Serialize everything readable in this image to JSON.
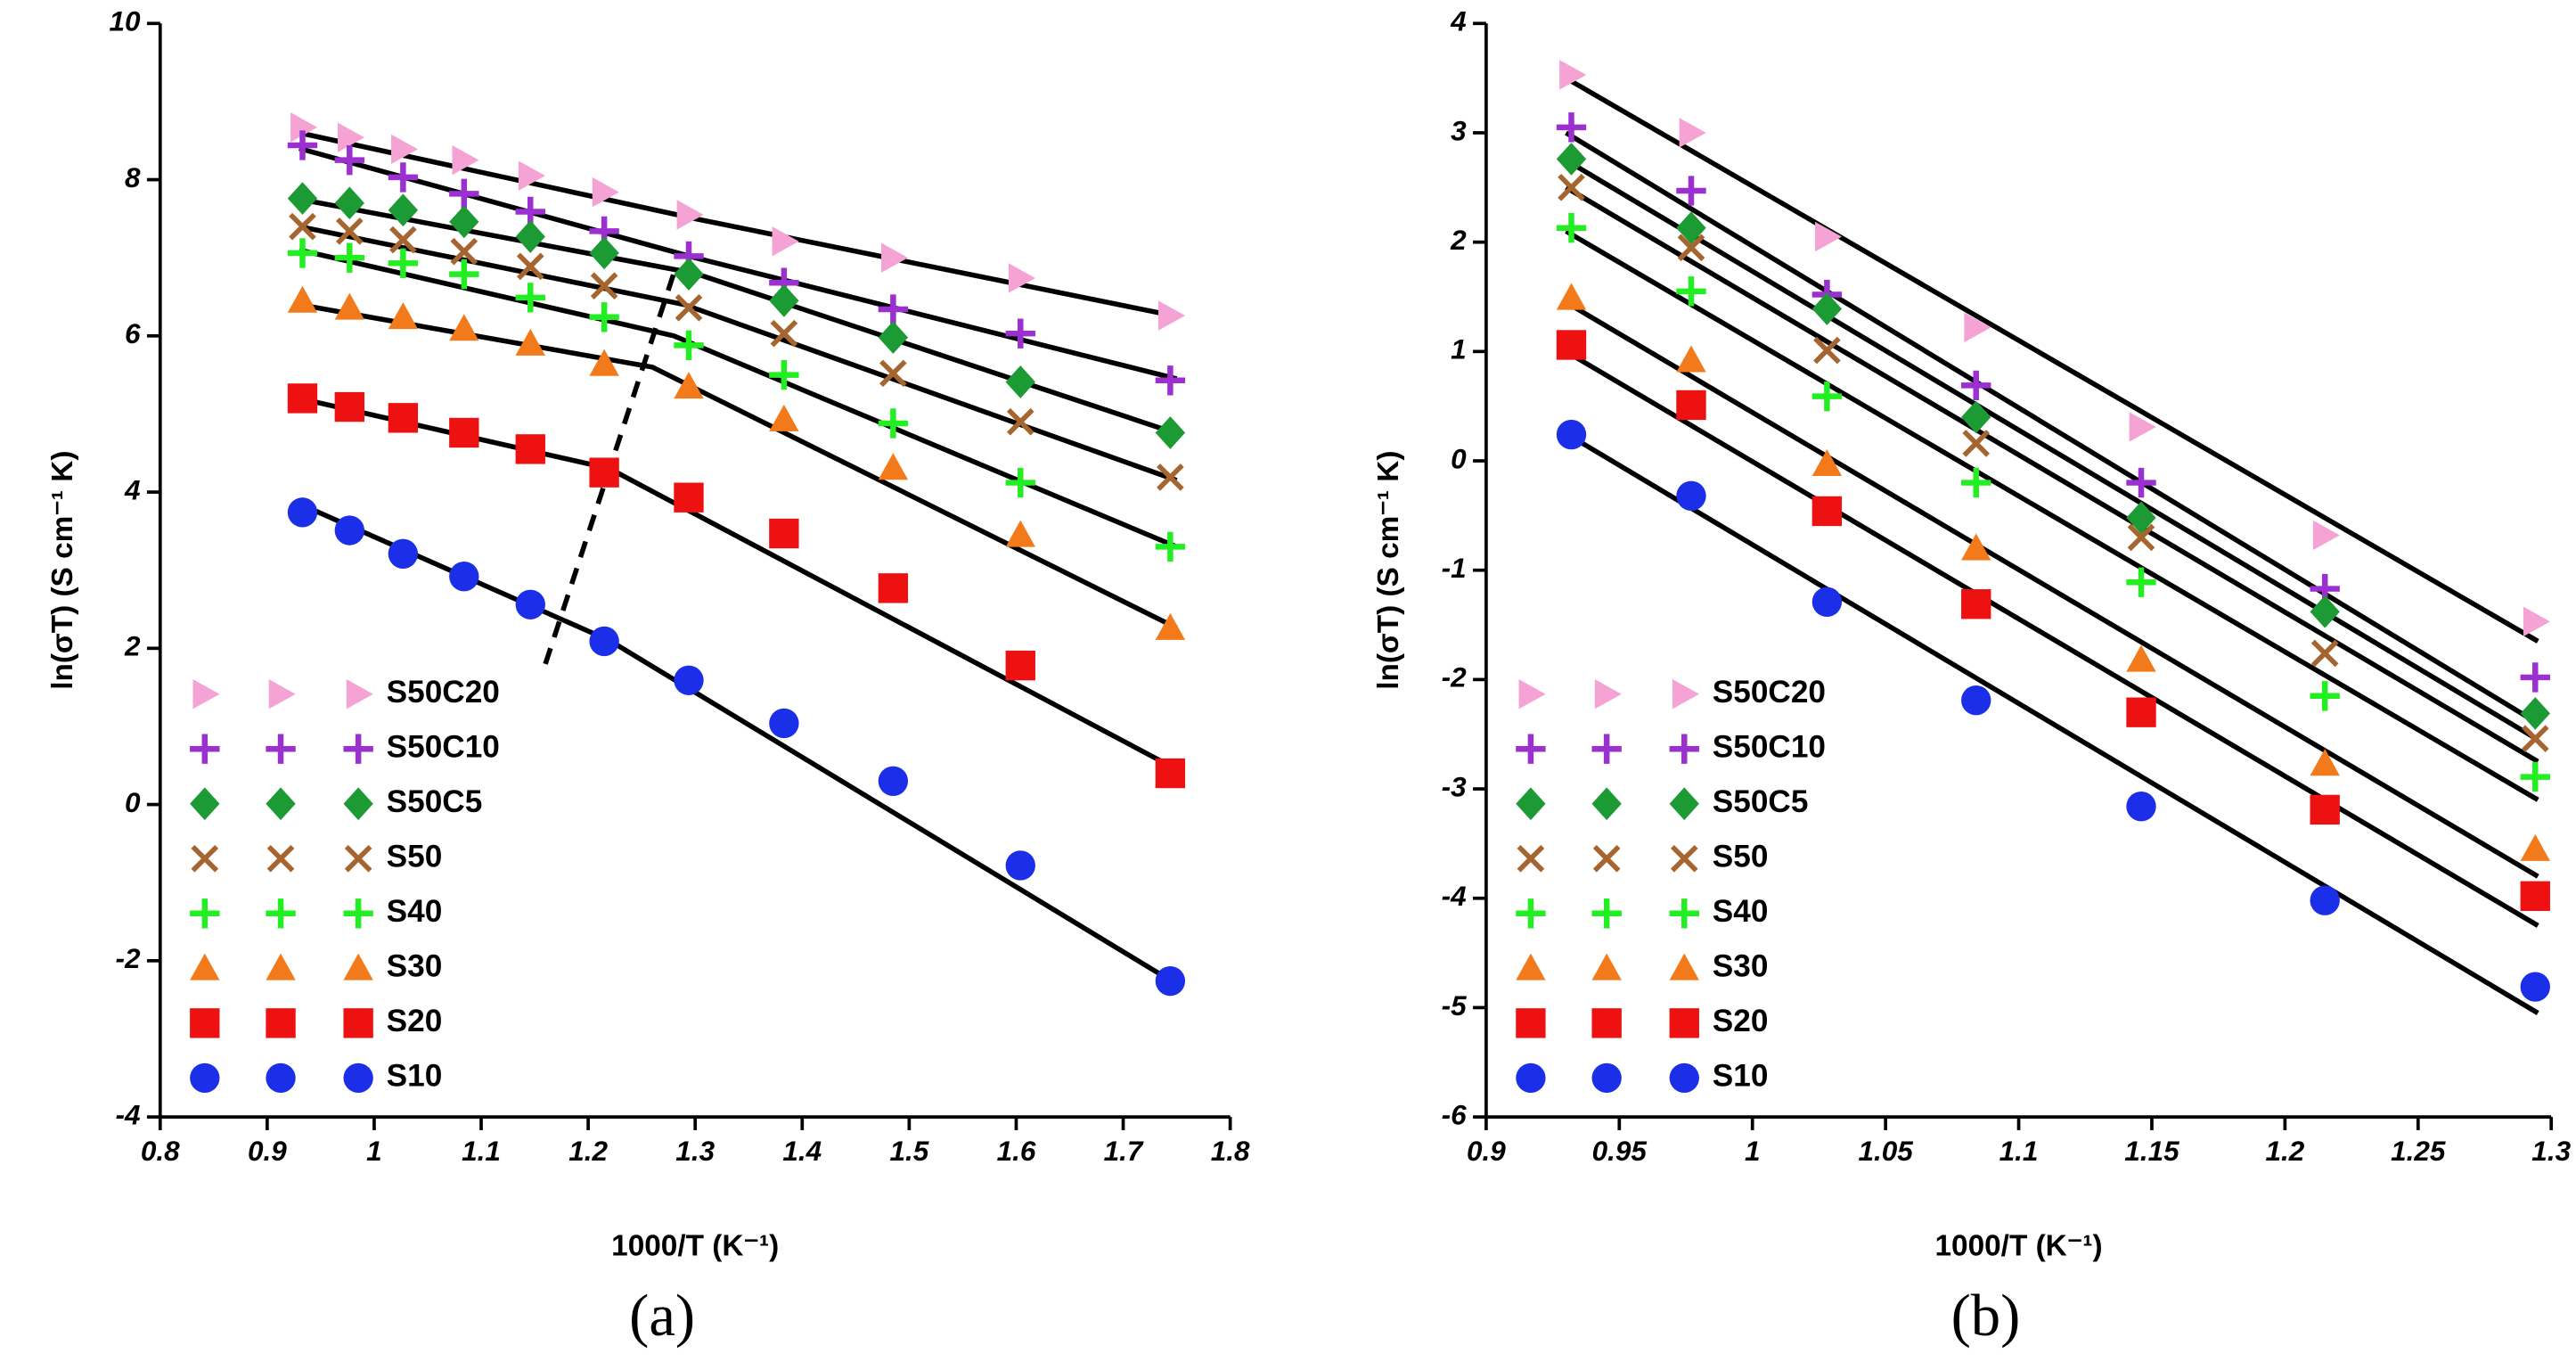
{
  "chart_data": [
    {
      "type": "scatter",
      "label": "(a)",
      "xlabel": "1000/T (K⁻¹)",
      "ylabel": "ln(σT) (S cm⁻¹ K)",
      "xlim": [
        0.8,
        1.8
      ],
      "ylim": [
        -4,
        10
      ],
      "xticks": [
        0.8,
        0.9,
        1,
        1.1,
        1.2,
        1.3,
        1.4,
        1.5,
        1.6,
        1.7,
        1.8
      ],
      "yticks": [
        -4,
        -2,
        0,
        2,
        4,
        6,
        8,
        10
      ],
      "x": [
        0.933,
        0.977,
        1.027,
        1.084,
        1.146,
        1.215,
        1.294,
        1.383,
        1.485,
        1.604,
        1.744
      ],
      "series": [
        {
          "name": "S50C20",
          "color": "#f4a3d4",
          "marker": "triangle-right",
          "values": [
            8.67,
            8.54,
            8.39,
            8.25,
            8.05,
            7.84,
            7.55,
            7.21,
            7.0,
            6.74,
            6.26
          ],
          "fit_x": [
            0.93,
            1.3,
            1.75
          ],
          "fit_y": [
            8.6,
            7.5,
            6.25
          ]
        },
        {
          "name": "S50C10",
          "color": "#9b2fd0",
          "marker": "plus",
          "values": [
            8.44,
            8.25,
            8.03,
            7.82,
            7.59,
            7.34,
            7.02,
            6.68,
            6.34,
            6.03,
            5.43
          ],
          "fit_x": [
            0.93,
            1.3,
            1.75
          ],
          "fit_y": [
            8.4,
            7.0,
            5.45
          ]
        },
        {
          "name": "S50C5",
          "color": "#1c9a34",
          "marker": "diamond",
          "values": [
            7.76,
            7.7,
            7.61,
            7.46,
            7.27,
            7.06,
            6.79,
            6.45,
            5.98,
            5.41,
            4.76
          ],
          "fit_x": [
            0.93,
            1.3,
            1.75
          ],
          "fit_y": [
            7.75,
            6.8,
            4.75
          ]
        },
        {
          "name": "S50",
          "color": "#a6642e",
          "marker": "x",
          "values": [
            7.4,
            7.34,
            7.23,
            7.08,
            6.89,
            6.64,
            6.36,
            6.03,
            5.52,
            4.9,
            4.19
          ],
          "fit_x": [
            0.93,
            1.29,
            1.75
          ],
          "fit_y": [
            7.4,
            6.4,
            4.15
          ]
        },
        {
          "name": "S40",
          "color": "#22ee22",
          "marker": "plus",
          "values": [
            7.06,
            7.0,
            6.93,
            6.79,
            6.49,
            6.24,
            5.88,
            5.5,
            4.88,
            4.12,
            3.3
          ],
          "fit_x": [
            0.93,
            1.28,
            1.75
          ],
          "fit_y": [
            7.1,
            6.0,
            3.3
          ]
        },
        {
          "name": "S30",
          "color": "#f27a1a",
          "marker": "triangle-up",
          "values": [
            6.45,
            6.36,
            6.24,
            6.09,
            5.9,
            5.64,
            5.35,
            4.93,
            4.31,
            3.45,
            2.26
          ],
          "fit_x": [
            0.93,
            1.26,
            1.75
          ],
          "fit_y": [
            6.4,
            5.6,
            2.26
          ]
        },
        {
          "name": "S20",
          "color": "#ee1111",
          "marker": "square",
          "values": [
            5.2,
            5.09,
            4.95,
            4.76,
            4.55,
            4.25,
            3.93,
            3.47,
            2.77,
            1.78,
            0.4
          ],
          "fit_x": [
            0.93,
            1.22,
            1.75
          ],
          "fit_y": [
            5.2,
            4.3,
            0.45
          ]
        },
        {
          "name": "S10",
          "color": "#1b2fe8",
          "marker": "circle",
          "values": [
            3.74,
            3.51,
            3.21,
            2.92,
            2.56,
            2.09,
            1.59,
            1.04,
            0.3,
            -0.78,
            -2.26
          ],
          "fit_x": [
            0.93,
            1.22,
            1.75
          ],
          "fit_y": [
            3.85,
            2.1,
            -2.3
          ]
        }
      ],
      "dashed_line": {
        "x": [
          1.16,
          1.28
        ],
        "y": [
          1.8,
          6.8
        ]
      }
    },
    {
      "type": "scatter",
      "label": "(b)",
      "xlabel": "1000/T (K⁻¹)",
      "ylabel": "ln(σT) (S cm⁻¹ K)",
      "xlim": [
        0.9,
        1.3
      ],
      "ylim": [
        -6,
        4
      ],
      "xticks": [
        0.9,
        0.95,
        1,
        1.05,
        1.1,
        1.15,
        1.2,
        1.25,
        1.3
      ],
      "yticks": [
        -6,
        -5,
        -4,
        -3,
        -2,
        -1,
        0,
        1,
        2,
        3,
        4
      ],
      "x": [
        0.932,
        0.977,
        1.028,
        1.084,
        1.146,
        1.215,
        1.294
      ],
      "series": [
        {
          "name": "S50C20",
          "color": "#f4a3d4",
          "marker": "triangle-right",
          "values": [
            3.53,
            3.0,
            2.05,
            1.22,
            0.31,
            -0.68,
            -1.47
          ],
          "fit_x": [
            0.93,
            1.295
          ],
          "fit_y": [
            3.5,
            -1.65
          ]
        },
        {
          "name": "S50C10",
          "color": "#9b2fd0",
          "marker": "plus",
          "values": [
            3.05,
            2.47,
            1.52,
            0.69,
            -0.2,
            -1.17,
            -1.98
          ],
          "fit_x": [
            0.93,
            1.295
          ],
          "fit_y": [
            3.0,
            -2.4
          ]
        },
        {
          "name": "S50C5",
          "color": "#1c9a34",
          "marker": "diamond",
          "values": [
            2.76,
            2.13,
            1.39,
            0.4,
            -0.52,
            -1.38,
            -2.31
          ],
          "fit_x": [
            0.93,
            1.295
          ],
          "fit_y": [
            2.75,
            -2.55
          ]
        },
        {
          "name": "S50",
          "color": "#a6642e",
          "marker": "x",
          "values": [
            2.5,
            1.95,
            1.01,
            0.16,
            -0.7,
            -1.76,
            -2.54
          ],
          "fit_x": [
            0.93,
            1.295
          ],
          "fit_y": [
            2.5,
            -2.75
          ]
        },
        {
          "name": "S40",
          "color": "#22ee22",
          "marker": "plus",
          "values": [
            2.13,
            1.55,
            0.59,
            -0.2,
            -1.11,
            -2.15,
            -2.89
          ],
          "fit_x": [
            0.93,
            1.295
          ],
          "fit_y": [
            2.1,
            -3.1
          ]
        },
        {
          "name": "S30",
          "color": "#f27a1a",
          "marker": "triangle-up",
          "values": [
            1.49,
            0.92,
            -0.03,
            -0.8,
            -1.82,
            -2.77,
            -3.55
          ],
          "fit_x": [
            0.93,
            1.295
          ],
          "fit_y": [
            1.45,
            -3.8
          ]
        },
        {
          "name": "S20",
          "color": "#ee1111",
          "marker": "square",
          "values": [
            1.06,
            0.51,
            -0.46,
            -1.31,
            -2.3,
            -3.19,
            -3.98
          ],
          "fit_x": [
            0.93,
            1.295
          ],
          "fit_y": [
            1.0,
            -4.25
          ]
        },
        {
          "name": "S10",
          "color": "#1b2fe8",
          "marker": "circle",
          "values": [
            0.24,
            -0.32,
            -1.29,
            -2.19,
            -3.16,
            -4.02,
            -4.81
          ],
          "fit_x": [
            0.93,
            1.295
          ],
          "fit_y": [
            0.25,
            -5.05
          ]
        }
      ]
    }
  ]
}
